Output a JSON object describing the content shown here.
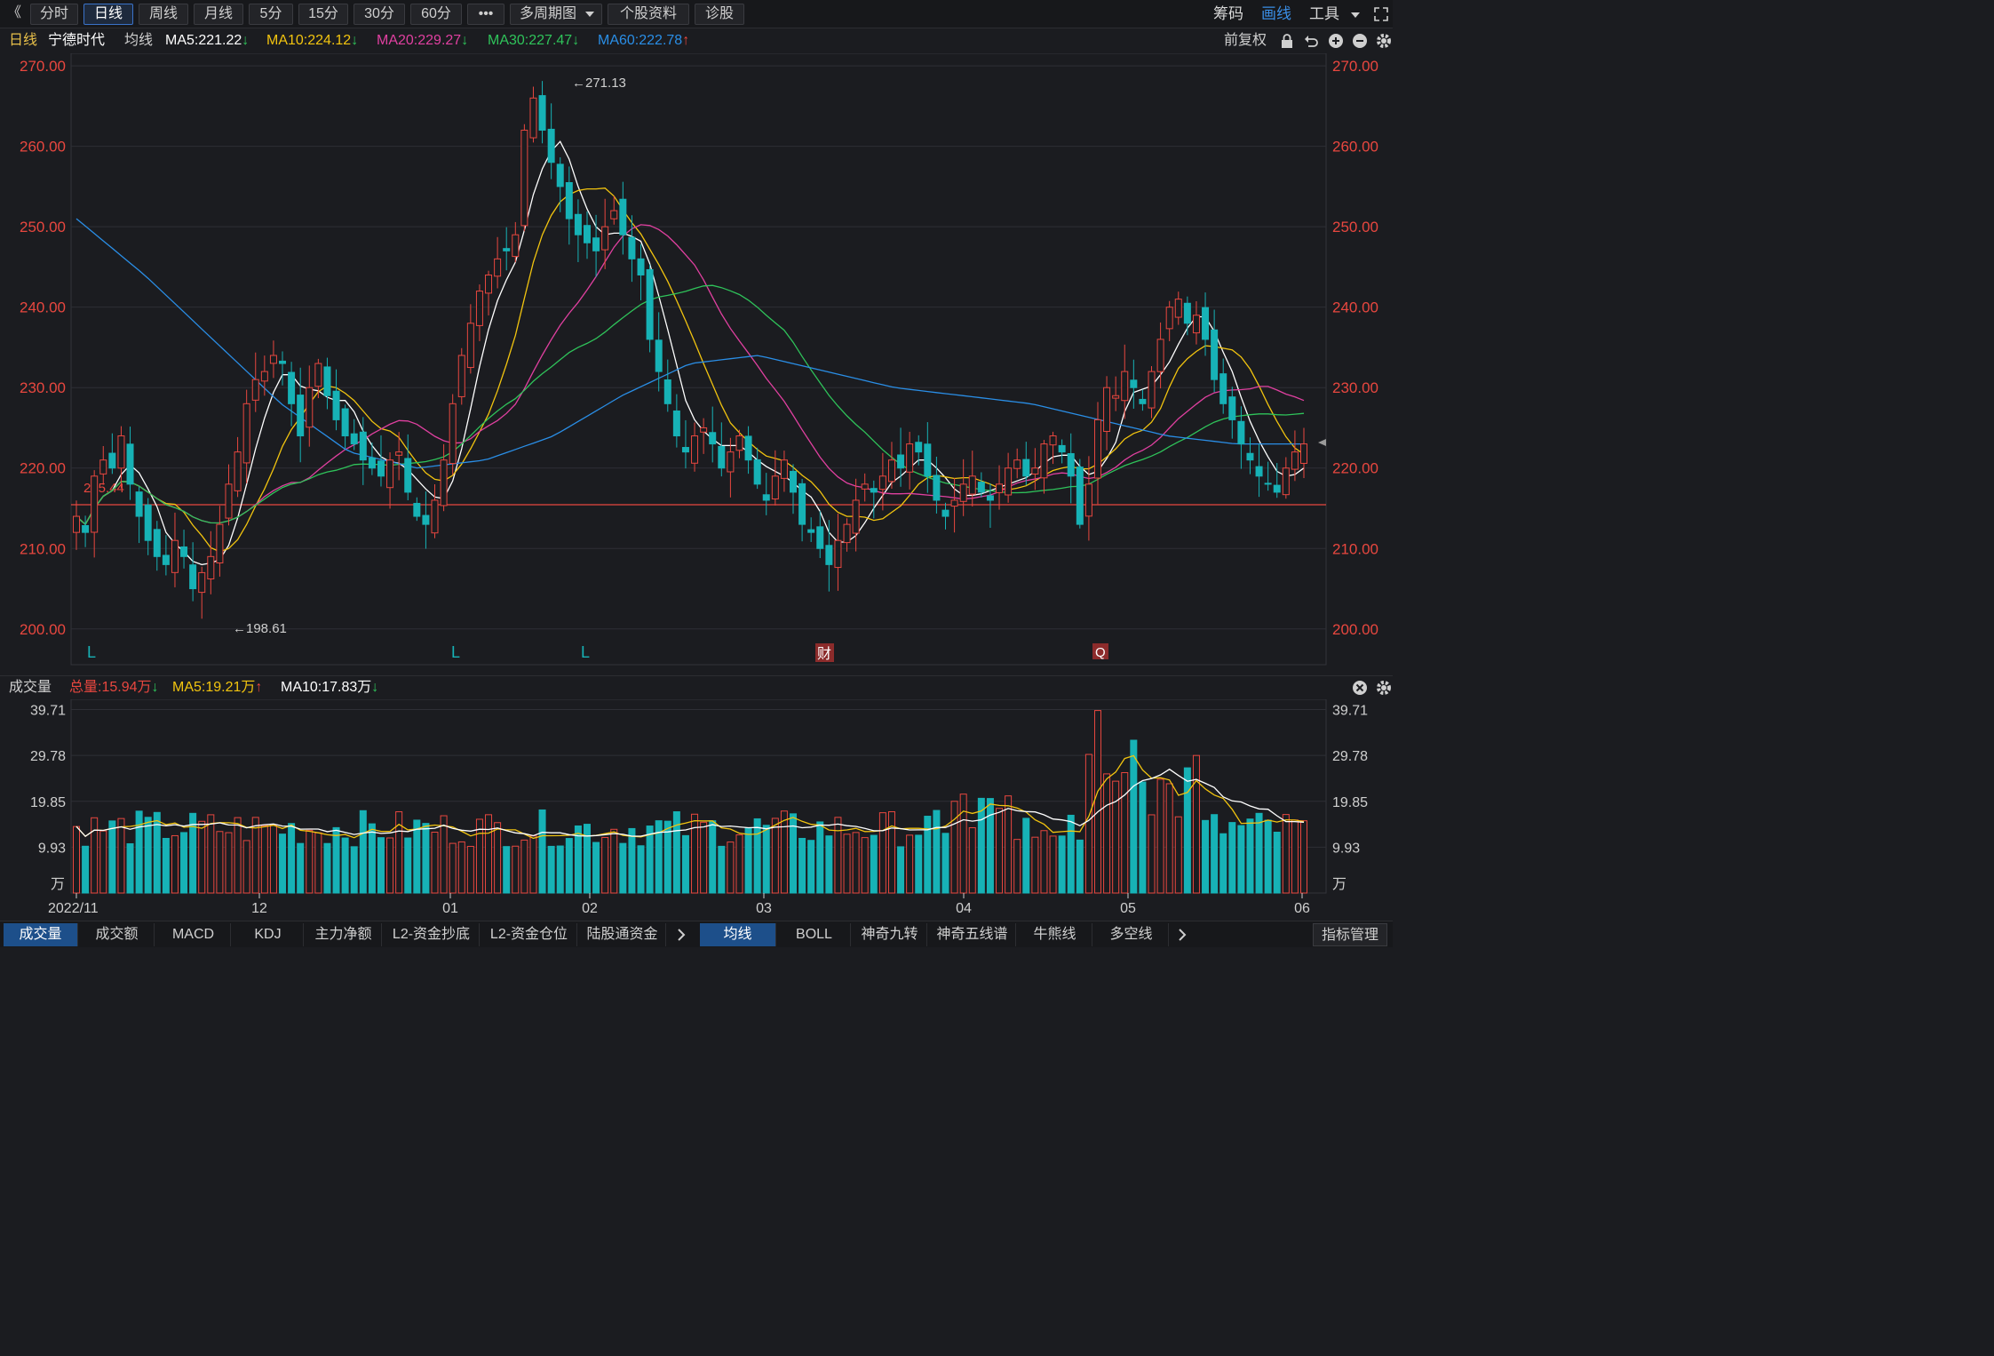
{
  "toolbar": {
    "back_glyph": "《",
    "periods": [
      "分时",
      "日线",
      "周线",
      "月线",
      "5分",
      "15分",
      "30分",
      "60分"
    ],
    "active_period": "日线",
    "more_label": "•••",
    "multi_period_label": "多周期图",
    "stock_info_label": "个股资料",
    "diagnose_label": "诊股",
    "chips_label": "筹码",
    "draw_label": "画线",
    "tools_label": "工具"
  },
  "ma_bar": {
    "period_label": "日线",
    "stock_name": "宁德时代",
    "ma_label": "均线",
    "ma5": "MA5:221.22",
    "ma10": "MA10:224.12",
    "ma20": "MA20:229.27",
    "ma30": "MA30:227.47",
    "ma60": "MA60:222.78",
    "adjust_label": "前复权"
  },
  "colors": {
    "up": "#e8473f",
    "down": "#17b2b6",
    "ma5": "#ffffff",
    "ma10": "#f2c40f",
    "ma20": "#e040a0",
    "ma30": "#2fc35a",
    "ma60": "#2a8ee6",
    "accent": "#3a8ee6"
  },
  "price_axis": {
    "ticks": [
      "270.00",
      "260.00",
      "250.00",
      "240.00",
      "230.00",
      "220.00",
      "210.00",
      "200.00"
    ],
    "current_price_line": 215.44,
    "current_price_label": "215.44"
  },
  "annotations": {
    "high_label": "←271.13",
    "low_label": "←198.61",
    "markers": [
      "L",
      "L",
      "L"
    ],
    "fin_marker": "财",
    "q_marker": "Q"
  },
  "volume_bar": {
    "title": "成交量",
    "total": "总量:15.94万",
    "ma5": "MA5:19.21万",
    "ma10": "MA10:17.83万",
    "ticks": [
      "39.71",
      "29.78",
      "19.85",
      "9.93"
    ],
    "unit": "万"
  },
  "date_axis": [
    "2022/11",
    "12",
    "01",
    "02",
    "03",
    "04",
    "05",
    "06"
  ],
  "bottom_tabs": {
    "left": [
      "成交量",
      "成交额",
      "MACD",
      "KDJ",
      "主力净额",
      "L2-资金抄底",
      "L2-资金仓位",
      "陆股通资金"
    ],
    "right": [
      "均线",
      "BOLL",
      "神奇九转",
      "神奇五线谱",
      "牛熊线",
      "多空线"
    ],
    "manage_label": "指标管理",
    "active_left": "成交量",
    "active_right": "均线"
  },
  "chart_data": {
    "type": "candlestick",
    "price_range": [
      196,
      272
    ],
    "volume_range": [
      0,
      40
    ],
    "close_path": [
      214,
      212,
      219,
      221,
      220,
      224,
      218,
      214,
      211,
      209,
      208,
      211,
      209,
      205,
      207,
      209,
      213,
      218,
      222,
      228,
      231,
      232,
      234,
      233,
      228,
      224,
      230,
      233,
      229,
      226,
      224,
      223,
      221,
      220,
      219,
      221,
      222,
      217,
      214,
      213,
      216,
      221,
      228,
      234,
      238,
      242,
      244,
      246,
      247,
      249,
      262,
      266,
      262,
      258,
      255,
      251,
      249,
      248,
      247,
      250,
      252,
      249,
      246,
      244,
      236,
      232,
      228,
      224,
      222,
      224,
      225,
      223,
      220,
      222,
      224,
      221,
      218,
      216,
      219,
      221,
      217,
      213,
      212,
      210,
      208,
      211,
      213,
      216,
      218,
      217,
      219,
      221,
      220,
      223,
      222,
      219,
      216,
      214,
      216,
      218,
      219,
      217,
      216,
      218,
      220,
      221,
      219,
      220,
      223,
      224,
      222,
      219,
      213,
      218,
      226,
      230,
      229,
      232,
      230,
      228,
      232,
      236,
      240,
      241,
      238,
      239,
      236,
      231,
      228,
      226,
      223,
      221,
      219,
      218,
      217,
      220,
      222,
      223
    ]
  }
}
